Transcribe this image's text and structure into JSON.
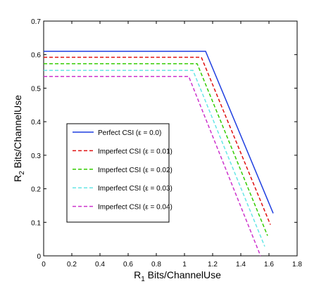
{
  "chart_data": {
    "type": "line",
    "xlabel_main": "R",
    "xlabel_sub": "1",
    "xlabel_rest": " Bits/ChannelUse",
    "ylabel_main": "R",
    "ylabel_sub": "2",
    "ylabel_rest": " Bits/ChannelUse",
    "xlim": [
      0,
      1.8
    ],
    "ylim": [
      0,
      0.7
    ],
    "xticks": [
      0,
      0.2,
      0.4,
      0.6,
      0.8,
      1,
      1.2,
      1.4,
      1.6,
      1.8
    ],
    "yticks": [
      0,
      0.1,
      0.2,
      0.3,
      0.4,
      0.5,
      0.6,
      0.7
    ],
    "xtick_labels": [
      "0",
      "0.2",
      "0.4",
      "0.6",
      "0.8",
      "1",
      "1.2",
      "1.4",
      "1.6",
      "1.8"
    ],
    "ytick_labels": [
      "0",
      "0.1",
      "0.2",
      "0.3",
      "0.4",
      "0.5",
      "0.6",
      "0.7"
    ],
    "grid": false,
    "legend_position": "center-left",
    "series": [
      {
        "name": "Perfect CSI (ε = 0.0)",
        "color": "#1f3fe0",
        "dash": "solid",
        "x": [
          0,
          1.15,
          1.63
        ],
        "y": [
          0.61,
          0.61,
          0.127
        ]
      },
      {
        "name": "Imperfect CSI (ε = 0.01)",
        "color": "#e01010",
        "dash": "dashed",
        "x": [
          0,
          1.12,
          1.61
        ],
        "y": [
          0.592,
          0.592,
          0.093
        ]
      },
      {
        "name": "Imperfect CSI (ε = 0.02)",
        "color": "#33cc00",
        "dash": "dashed",
        "x": [
          0,
          1.09,
          1.59
        ],
        "y": [
          0.573,
          0.573,
          0.06
        ]
      },
      {
        "name": "Imperfect CSI (ε = 0.03)",
        "color": "#66e6e6",
        "dash": "dashed",
        "x": [
          0,
          1.06,
          1.57
        ],
        "y": [
          0.553,
          0.553,
          0.028
        ]
      },
      {
        "name": "Imperfect CSI (ε = 0.04)",
        "color": "#cc33cc",
        "dash": "dashed",
        "x": [
          0,
          1.03,
          1.54
        ],
        "y": [
          0.535,
          0.535,
          0.0
        ]
      }
    ]
  }
}
